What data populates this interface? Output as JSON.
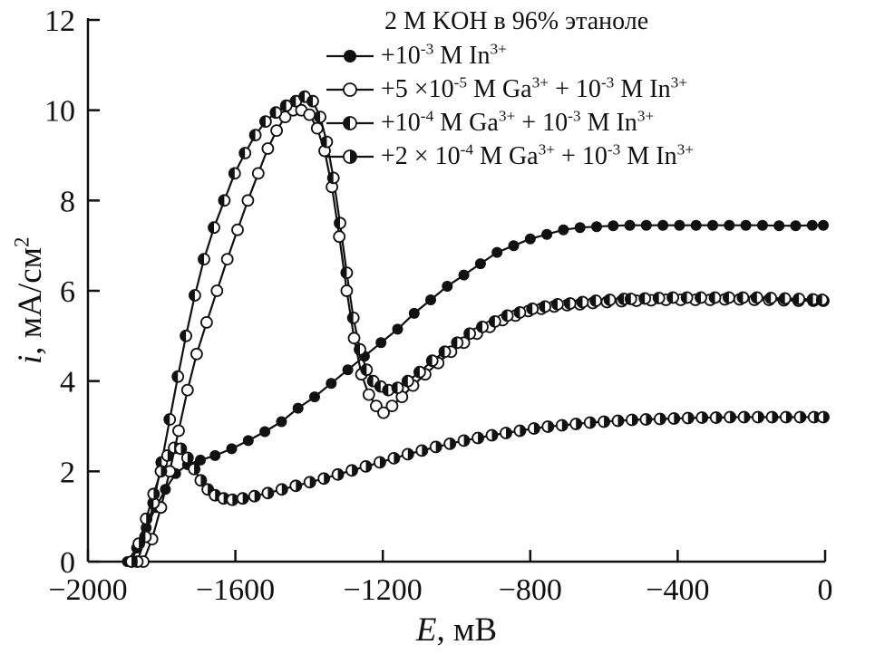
{
  "chart_data": {
    "type": "line",
    "legend_header": "2 М KOH в 96% этаноле",
    "legend_position": "top-inside",
    "grid": false,
    "xlabel": {
      "italic": "E",
      "rest": ", мВ"
    },
    "ylabel": {
      "italic": "i",
      "rest": ", мА/см^{2}"
    },
    "xlim": [
      -2000,
      0
    ],
    "ylim": [
      0,
      12
    ],
    "xticks": [
      -2000,
      -1600,
      -1200,
      -800,
      -400,
      0
    ],
    "xtick_labels": [
      "−2000",
      "−1600",
      "−1200",
      "−800",
      "−400",
      "0"
    ],
    "yticks": [
      0,
      2,
      4,
      6,
      8,
      10,
      12
    ],
    "ytick_labels": [
      "0",
      "2",
      "4",
      "6",
      "8",
      "10",
      "12"
    ],
    "colors": {
      "line": "#111111",
      "background": "#ffffff"
    },
    "series": [
      {
        "name": "+10^{-3} M In^{3+}",
        "marker": "filled-circle",
        "points": [
          [
            -1893,
            0
          ],
          [
            -1868,
            0.3
          ],
          [
            -1842,
            0.75
          ],
          [
            -1816,
            1.2
          ],
          [
            -1790,
            1.6
          ],
          [
            -1762,
            1.95
          ],
          [
            -1730,
            2.15
          ],
          [
            -1695,
            2.25
          ],
          [
            -1655,
            2.35
          ],
          [
            -1610,
            2.5
          ],
          [
            -1565,
            2.68
          ],
          [
            -1520,
            2.88
          ],
          [
            -1475,
            3.1
          ],
          [
            -1430,
            3.4
          ],
          [
            -1385,
            3.65
          ],
          [
            -1340,
            3.95
          ],
          [
            -1295,
            4.25
          ],
          [
            -1250,
            4.55
          ],
          [
            -1205,
            4.85
          ],
          [
            -1160,
            5.15
          ],
          [
            -1115,
            5.5
          ],
          [
            -1070,
            5.8
          ],
          [
            -1025,
            6.1
          ],
          [
            -980,
            6.35
          ],
          [
            -935,
            6.6
          ],
          [
            -890,
            6.85
          ],
          [
            -845,
            7.0
          ],
          [
            -800,
            7.15
          ],
          [
            -755,
            7.25
          ],
          [
            -710,
            7.35
          ],
          [
            -665,
            7.4
          ],
          [
            -620,
            7.42
          ],
          [
            -575,
            7.44
          ],
          [
            -530,
            7.45
          ],
          [
            -485,
            7.45
          ],
          [
            -440,
            7.45
          ],
          [
            -395,
            7.45
          ],
          [
            -350,
            7.45
          ],
          [
            -305,
            7.45
          ],
          [
            -260,
            7.45
          ],
          [
            -215,
            7.45
          ],
          [
            -170,
            7.45
          ],
          [
            -125,
            7.44
          ],
          [
            -80,
            7.44
          ],
          [
            -35,
            7.45
          ],
          [
            -5,
            7.45
          ]
        ]
      },
      {
        "name": "+5 ×10^{-5} M Ga^{3+} + 10^{-3} M In^{3+}",
        "marker": "open-circle",
        "points": [
          [
            -1850,
            0
          ],
          [
            -1826,
            0.5
          ],
          [
            -1802,
            1.2
          ],
          [
            -1778,
            2.0
          ],
          [
            -1754,
            2.9
          ],
          [
            -1730,
            3.8
          ],
          [
            -1705,
            4.6
          ],
          [
            -1678,
            5.3
          ],
          [
            -1650,
            6.0
          ],
          [
            -1622,
            6.7
          ],
          [
            -1594,
            7.35
          ],
          [
            -1566,
            8.0
          ],
          [
            -1538,
            8.6
          ],
          [
            -1512,
            9.15
          ],
          [
            -1488,
            9.55
          ],
          [
            -1465,
            9.85
          ],
          [
            -1443,
            10.0
          ],
          [
            -1421,
            10.0
          ],
          [
            -1399,
            9.9
          ],
          [
            -1378,
            9.6
          ],
          [
            -1358,
            9.1
          ],
          [
            -1338,
            8.3
          ],
          [
            -1318,
            7.2
          ],
          [
            -1298,
            6.0
          ],
          [
            -1278,
            4.95
          ],
          [
            -1258,
            4.15
          ],
          [
            -1238,
            3.7
          ],
          [
            -1218,
            3.45
          ],
          [
            -1198,
            3.3
          ],
          [
            -1175,
            3.45
          ],
          [
            -1148,
            3.65
          ],
          [
            -1118,
            3.9
          ],
          [
            -1085,
            4.15
          ],
          [
            -1050,
            4.4
          ],
          [
            -1015,
            4.65
          ],
          [
            -980,
            4.85
          ],
          [
            -945,
            5.05
          ],
          [
            -910,
            5.2
          ],
          [
            -875,
            5.35
          ],
          [
            -840,
            5.45
          ],
          [
            -805,
            5.55
          ],
          [
            -770,
            5.6
          ],
          [
            -735,
            5.65
          ],
          [
            -700,
            5.68
          ],
          [
            -665,
            5.7
          ],
          [
            -630,
            5.73
          ],
          [
            -592,
            5.75
          ],
          [
            -552,
            5.77
          ],
          [
            -512,
            5.78
          ],
          [
            -472,
            5.79
          ],
          [
            -432,
            5.8
          ],
          [
            -392,
            5.8
          ],
          [
            -352,
            5.8
          ],
          [
            -312,
            5.8
          ],
          [
            -272,
            5.81
          ],
          [
            -232,
            5.81
          ],
          [
            -192,
            5.8
          ],
          [
            -152,
            5.8
          ],
          [
            -112,
            5.79
          ],
          [
            -72,
            5.78
          ],
          [
            -32,
            5.78
          ],
          [
            -5,
            5.78
          ]
        ]
      },
      {
        "name": "+10^{-4} M Ga^{3+} + 10^{-3} M In^{3+}",
        "marker": "half-left-circle",
        "points": [
          [
            -1866,
            0
          ],
          [
            -1844,
            0.55
          ],
          [
            -1822,
            1.3
          ],
          [
            -1800,
            2.2
          ],
          [
            -1778,
            3.15
          ],
          [
            -1756,
            4.1
          ],
          [
            -1734,
            5.0
          ],
          [
            -1710,
            5.9
          ],
          [
            -1685,
            6.7
          ],
          [
            -1658,
            7.4
          ],
          [
            -1630,
            8.0
          ],
          [
            -1602,
            8.6
          ],
          [
            -1574,
            9.05
          ],
          [
            -1546,
            9.45
          ],
          [
            -1518,
            9.75
          ],
          [
            -1490,
            9.95
          ],
          [
            -1462,
            10.1
          ],
          [
            -1436,
            10.2
          ],
          [
            -1412,
            10.3
          ],
          [
            -1390,
            10.2
          ],
          [
            -1370,
            9.85
          ],
          [
            -1352,
            9.3
          ],
          [
            -1334,
            8.5
          ],
          [
            -1316,
            7.5
          ],
          [
            -1298,
            6.4
          ],
          [
            -1280,
            5.4
          ],
          [
            -1262,
            4.7
          ],
          [
            -1244,
            4.25
          ],
          [
            -1226,
            4.0
          ],
          [
            -1206,
            3.88
          ],
          [
            -1185,
            3.8
          ],
          [
            -1160,
            3.85
          ],
          [
            -1132,
            4.0
          ],
          [
            -1100,
            4.2
          ],
          [
            -1066,
            4.45
          ],
          [
            -1032,
            4.65
          ],
          [
            -998,
            4.85
          ],
          [
            -964,
            5.05
          ],
          [
            -930,
            5.2
          ],
          [
            -896,
            5.32
          ],
          [
            -862,
            5.45
          ],
          [
            -828,
            5.52
          ],
          [
            -794,
            5.6
          ],
          [
            -760,
            5.65
          ],
          [
            -726,
            5.7
          ],
          [
            -692,
            5.72
          ],
          [
            -658,
            5.75
          ],
          [
            -622,
            5.78
          ],
          [
            -584,
            5.8
          ],
          [
            -546,
            5.82
          ],
          [
            -527,
            5.82
          ],
          [
            -489,
            5.83
          ],
          [
            -451,
            5.84
          ],
          [
            -413,
            5.85
          ],
          [
            -375,
            5.85
          ],
          [
            -337,
            5.85
          ],
          [
            -299,
            5.85
          ],
          [
            -261,
            5.85
          ],
          [
            -223,
            5.85
          ],
          [
            -185,
            5.85
          ],
          [
            -147,
            5.84
          ],
          [
            -109,
            5.83
          ],
          [
            -71,
            5.82
          ],
          [
            -33,
            5.81
          ],
          [
            -8,
            5.8
          ]
        ]
      },
      {
        "name": "+2 × 10^{-4} M Ga^{3+} + 10^{-3} M In^{3+}",
        "marker": "half-right-circle",
        "points": [
          [
            -1882,
            0
          ],
          [
            -1862,
            0.4
          ],
          [
            -1842,
            0.95
          ],
          [
            -1822,
            1.5
          ],
          [
            -1802,
            2.0
          ],
          [
            -1784,
            2.35
          ],
          [
            -1766,
            2.52
          ],
          [
            -1748,
            2.5
          ],
          [
            -1730,
            2.3
          ],
          [
            -1712,
            2.05
          ],
          [
            -1694,
            1.8
          ],
          [
            -1675,
            1.6
          ],
          [
            -1655,
            1.47
          ],
          [
            -1632,
            1.4
          ],
          [
            -1608,
            1.37
          ],
          [
            -1580,
            1.4
          ],
          [
            -1548,
            1.45
          ],
          [
            -1512,
            1.52
          ],
          [
            -1474,
            1.6
          ],
          [
            -1436,
            1.68
          ],
          [
            -1398,
            1.76
          ],
          [
            -1360,
            1.84
          ],
          [
            -1322,
            1.93
          ],
          [
            -1284,
            2.02
          ],
          [
            -1246,
            2.11
          ],
          [
            -1208,
            2.2
          ],
          [
            -1170,
            2.29
          ],
          [
            -1132,
            2.38
          ],
          [
            -1094,
            2.46
          ],
          [
            -1056,
            2.54
          ],
          [
            -1018,
            2.61
          ],
          [
            -980,
            2.68
          ],
          [
            -942,
            2.74
          ],
          [
            -904,
            2.8
          ],
          [
            -866,
            2.85
          ],
          [
            -828,
            2.9
          ],
          [
            -790,
            2.95
          ],
          [
            -752,
            2.99
          ],
          [
            -714,
            3.02
          ],
          [
            -676,
            3.05
          ],
          [
            -638,
            3.08
          ],
          [
            -600,
            3.1
          ],
          [
            -562,
            3.12
          ],
          [
            -524,
            3.14
          ],
          [
            -486,
            3.15
          ],
          [
            -448,
            3.16
          ],
          [
            -410,
            3.17
          ],
          [
            -372,
            3.18
          ],
          [
            -334,
            3.19
          ],
          [
            -296,
            3.19
          ],
          [
            -258,
            3.2
          ],
          [
            -220,
            3.2
          ],
          [
            -182,
            3.2
          ],
          [
            -144,
            3.2
          ],
          [
            -106,
            3.2
          ],
          [
            -68,
            3.2
          ],
          [
            -30,
            3.2
          ],
          [
            -5,
            3.2
          ]
        ]
      }
    ]
  }
}
